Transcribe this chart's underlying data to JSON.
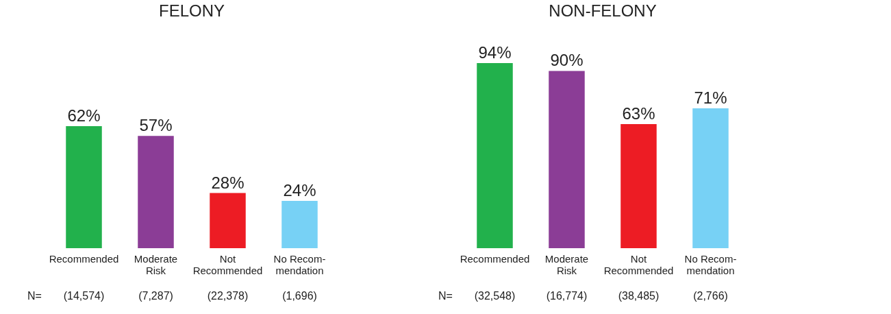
{
  "chart_data": [
    {
      "type": "bar",
      "title": "FELONY",
      "categories": [
        "Recommended",
        "Moderate\nRisk",
        "Not\nRecommended",
        "No Recom-\nmendation"
      ],
      "values": [
        62,
        57,
        28,
        24
      ],
      "value_labels": [
        "62%",
        "57%",
        "28%",
        "24%"
      ],
      "colors": [
        "#22b14c",
        "#8b3d96",
        "#ed1c24",
        "#77d1f5"
      ],
      "tick_labels": "x",
      "grid": false,
      "annotations": [
        "N=",
        "(14,574)",
        "(7,287)",
        "(22,378)",
        "(1,696)"
      ]
    },
    {
      "type": "bar",
      "title": "NON-FELONY",
      "categories": [
        "Recommended",
        "Moderate\nRisk",
        "Not\nRecommended",
        "No Recom-\nmendation"
      ],
      "values": [
        94,
        90,
        63,
        71
      ],
      "value_labels": [
        "94%",
        "90%",
        "63%",
        "71%"
      ],
      "colors": [
        "#22b14c",
        "#8b3d96",
        "#ed1c24",
        "#77d1f5"
      ],
      "tick_labels": "x",
      "grid": false,
      "annotations": [
        "N=",
        "(32,548)",
        "(16,774)",
        "(38,485)",
        "(2,766)"
      ]
    }
  ]
}
